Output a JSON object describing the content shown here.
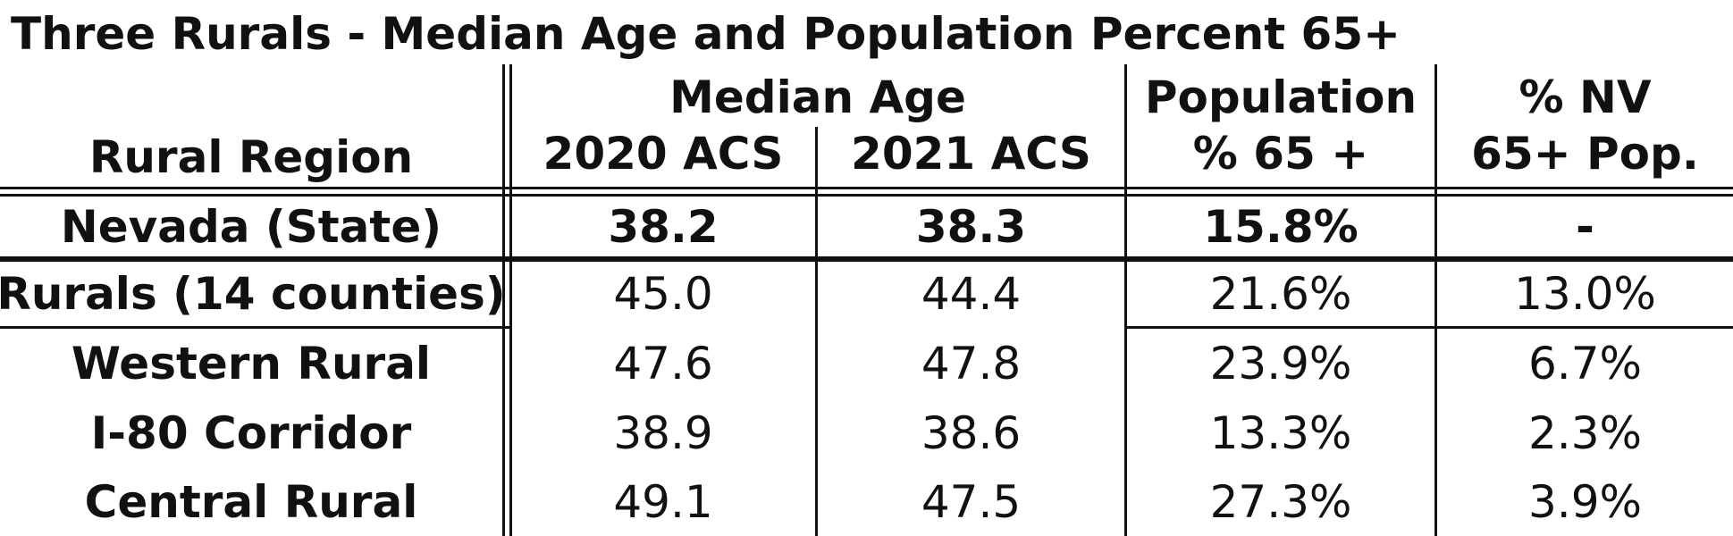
{
  "title": "Three Rurals - Median Age and Population Percent 65+",
  "header": {
    "region": "Rural Region",
    "median_age": "Median Age",
    "acs2020": "2020 ACS",
    "acs2021": "2021 ACS",
    "population_line1": "Population",
    "population_line2": "% 65 +",
    "nv_line1": "% NV",
    "nv_line2": "65+ Pop."
  },
  "rows": [
    {
      "region": "Nevada (State)",
      "acs2020": "38.2",
      "acs2021": "38.3",
      "pct65": "15.8%",
      "nv65": "-"
    },
    {
      "region": "Rurals (14 counties)",
      "acs2020": "45.0",
      "acs2021": "44.4",
      "pct65": "21.6%",
      "nv65": "13.0%"
    },
    {
      "region": "Western Rural",
      "acs2020": "47.6",
      "acs2021": "47.8",
      "pct65": "23.9%",
      "nv65": "6.7%"
    },
    {
      "region": "I-80 Corridor",
      "acs2020": "38.9",
      "acs2021": "38.6",
      "pct65": "13.3%",
      "nv65": "2.3%"
    },
    {
      "region": "Central Rural",
      "acs2020": "49.1",
      "acs2021": "47.5",
      "pct65": "27.3%",
      "nv65": "3.9%"
    }
  ]
}
